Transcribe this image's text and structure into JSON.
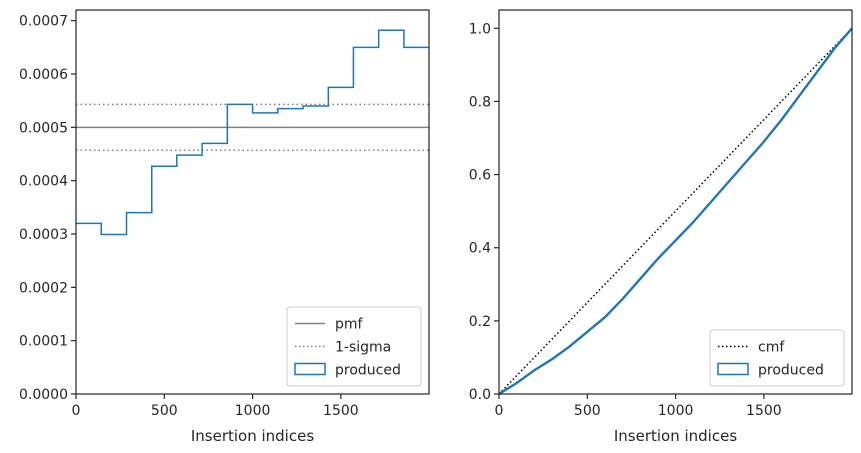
{
  "chart_data": [
    {
      "type": "line",
      "xlabel": "Insertion indices",
      "ylabel": "",
      "xlim": [
        0,
        1999
      ],
      "ylim": [
        0,
        0.00072
      ],
      "x_ticks": [
        0,
        500,
        1000,
        1500
      ],
      "y_ticks": [
        "0.0000",
        "0.0001",
        "0.0002",
        "0.0003",
        "0.0004",
        "0.0005",
        "0.0006",
        "0.0007"
      ],
      "y_tick_values": [
        0,
        0.0001,
        0.0002,
        0.0003,
        0.0004,
        0.0005,
        0.0006,
        0.0007
      ],
      "grid": false,
      "legend_position": "bottom-right",
      "legend": [
        {
          "label": "pmf",
          "style": "solid-line",
          "color": "#808080"
        },
        {
          "label": "1-sigma",
          "style": "dotted-line",
          "color": "#808080"
        },
        {
          "label": "produced",
          "style": "box",
          "color": "#1f77b4"
        }
      ],
      "pmf": 0.0005,
      "sigma_band": [
        0.000457,
        0.000543
      ],
      "histogram": {
        "name": "produced",
        "color": "#1f77b4",
        "bin_edges": [
          0,
          143,
          286,
          429,
          571,
          714,
          857,
          1000,
          1143,
          1286,
          1429,
          1571,
          1714,
          1857,
          1999
        ],
        "values": [
          0.00032,
          0.000299,
          0.00034,
          0.000427,
          0.000448,
          0.00047,
          0.000543,
          0.000527,
          0.000535,
          0.00054,
          0.000575,
          0.00065,
          0.000682,
          0.00065
        ]
      }
    },
    {
      "type": "line",
      "xlabel": "Insertion indices",
      "ylabel": "",
      "xlim": [
        0,
        1999
      ],
      "ylim": [
        0,
        1.05
      ],
      "x_ticks": [
        0,
        500,
        1000,
        1500
      ],
      "y_ticks": [
        "0.0",
        "0.2",
        "0.4",
        "0.6",
        "0.8",
        "1.0"
      ],
      "y_tick_values": [
        0,
        0.2,
        0.4,
        0.6,
        0.8,
        1.0
      ],
      "grid": false,
      "legend_position": "bottom-right",
      "legend": [
        {
          "label": "cmf",
          "style": "dotted-line",
          "color": "#000000"
        },
        {
          "label": "produced",
          "style": "box",
          "color": "#1f77b4"
        }
      ],
      "cmf": {
        "x": [
          0,
          1999
        ],
        "y": [
          0,
          1.0
        ]
      },
      "produced": {
        "name": "produced",
        "color": "#1f77b4",
        "x": [
          0,
          100,
          200,
          300,
          400,
          500,
          600,
          700,
          800,
          900,
          1000,
          1100,
          1200,
          1300,
          1400,
          1500,
          1600,
          1700,
          1800,
          1900,
          1999
        ],
        "y": [
          0,
          0.03,
          0.065,
          0.095,
          0.13,
          0.17,
          0.21,
          0.26,
          0.315,
          0.37,
          0.42,
          0.47,
          0.525,
          0.58,
          0.635,
          0.69,
          0.75,
          0.815,
          0.88,
          0.945,
          1.0
        ]
      }
    }
  ]
}
